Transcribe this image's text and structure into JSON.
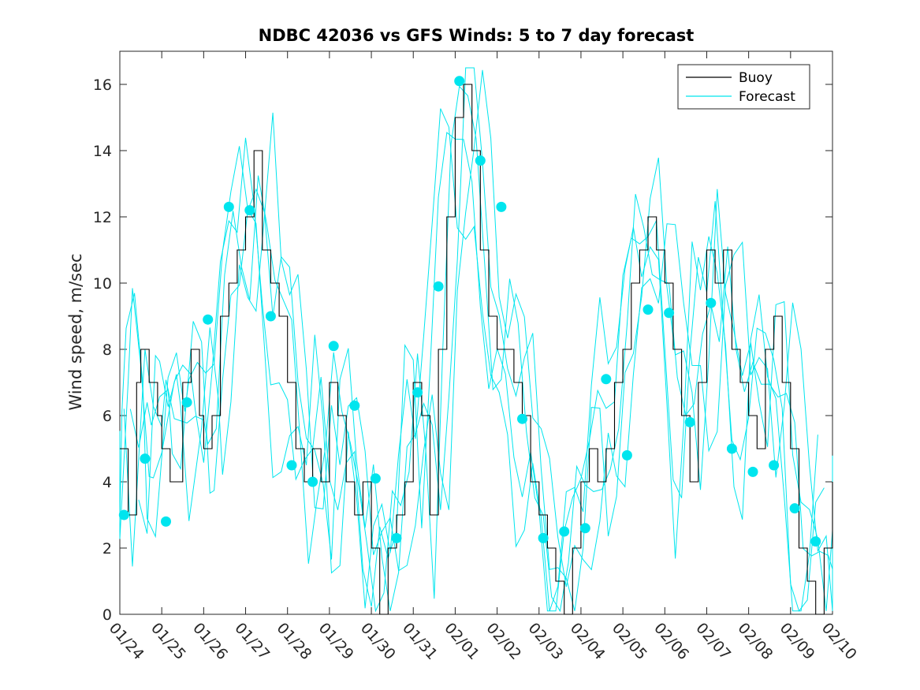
{
  "chart_data": {
    "type": "line",
    "title": "NDBC 42036 vs GFS Winds: 5 to 7 day forecast",
    "xlabel": "",
    "ylabel": "Wind speed, m/sec",
    "xlim": [
      0,
      17
    ],
    "ylim": [
      0,
      17
    ],
    "x_ticks": [
      0,
      1,
      2,
      3,
      4,
      5,
      6,
      7,
      8,
      9,
      10,
      11,
      12,
      13,
      14,
      15,
      16,
      17
    ],
    "x_tick_labels": [
      "01/24",
      "01/25",
      "01/26",
      "01/27",
      "01/28",
      "01/29",
      "01/30",
      "01/31",
      "02/01",
      "02/02",
      "02/03",
      "02/04",
      "02/05",
      "02/06",
      "02/07",
      "02/08",
      "02/09",
      "02/10"
    ],
    "y_ticks": [
      0,
      2,
      4,
      6,
      8,
      10,
      12,
      14,
      16
    ],
    "y_tick_labels": [
      "0",
      "2",
      "4",
      "6",
      "8",
      "10",
      "12",
      "14",
      "16"
    ],
    "legend": {
      "location": "top-right",
      "entries": [
        "Buoy",
        "Forecast"
      ]
    },
    "colors": {
      "buoy": "#000000",
      "forecast": "#00e5ee",
      "dots": "#00e5ee"
    },
    "series": [
      {
        "name": "Buoy",
        "x": [
          0,
          0.2,
          0.4,
          0.5,
          0.7,
          0.9,
          1.0,
          1.2,
          1.5,
          1.7,
          1.9,
          2.0,
          2.2,
          2.4,
          2.6,
          2.8,
          3.0,
          3.2,
          3.4,
          3.6,
          3.8,
          4.0,
          4.2,
          4.4,
          4.6,
          4.8,
          5.0,
          5.2,
          5.4,
          5.6,
          5.8,
          6.0,
          6.2,
          6.4,
          6.6,
          6.8,
          7.0,
          7.2,
          7.4,
          7.6,
          7.8,
          8.0,
          8.2,
          8.4,
          8.6,
          8.8,
          9.0,
          9.2,
          9.4,
          9.6,
          9.8,
          10.0,
          10.2,
          10.4,
          10.6,
          10.8,
          11.0,
          11.2,
          11.4,
          11.6,
          11.8,
          12.0,
          12.2,
          12.4,
          12.6,
          12.8,
          13.0,
          13.2,
          13.4,
          13.6,
          13.8,
          14.0,
          14.2,
          14.4,
          14.6,
          14.8,
          15.0,
          15.2,
          15.4,
          15.6,
          15.8,
          16.0,
          16.2,
          16.4,
          16.6,
          16.8,
          17.0
        ],
        "y": [
          5,
          3,
          7,
          8,
          7,
          6,
          5,
          4,
          7,
          8,
          6,
          5,
          6,
          9,
          10,
          11,
          12,
          14,
          11,
          10,
          9,
          7,
          5,
          4,
          5,
          4,
          7,
          6,
          4,
          3,
          4,
          2,
          0,
          2,
          3,
          4,
          7,
          6,
          3,
          8,
          12,
          15,
          16,
          14,
          11,
          9,
          8,
          8,
          7,
          6,
          4,
          3,
          2,
          1,
          0,
          2,
          4,
          5,
          4,
          5,
          7,
          8,
          10,
          11,
          12,
          11,
          10,
          8,
          6,
          4,
          7,
          11,
          10,
          11,
          8,
          7,
          6,
          5,
          8,
          9,
          7,
          5,
          2,
          1,
          0,
          2,
          4
        ]
      },
      {
        "name": "Forecast",
        "x": [],
        "y": []
      }
    ],
    "forecast_points": {
      "x": [
        0.1,
        0.6,
        1.1,
        1.6,
        2.1,
        2.6,
        3.1,
        3.6,
        4.1,
        4.6,
        5.1,
        5.6,
        6.1,
        6.6,
        7.1,
        7.6,
        8.1,
        8.6,
        9.1,
        9.6,
        10.1,
        10.6,
        11.1,
        11.6,
        12.1,
        12.6,
        13.1,
        13.6,
        14.1,
        14.6,
        15.1,
        15.6,
        16.1,
        16.6
      ],
      "y": [
        3.0,
        4.7,
        2.8,
        6.4,
        8.9,
        12.3,
        12.2,
        9.0,
        4.5,
        4.0,
        8.1,
        6.3,
        4.1,
        2.3,
        6.7,
        9.9,
        16.1,
        13.7,
        12.3,
        5.9,
        2.3,
        2.5,
        2.6,
        7.1,
        4.8,
        9.2,
        9.1,
        5.8,
        9.4,
        5.0,
        4.3,
        4.5,
        3.2,
        2.2
      ]
    }
  }
}
